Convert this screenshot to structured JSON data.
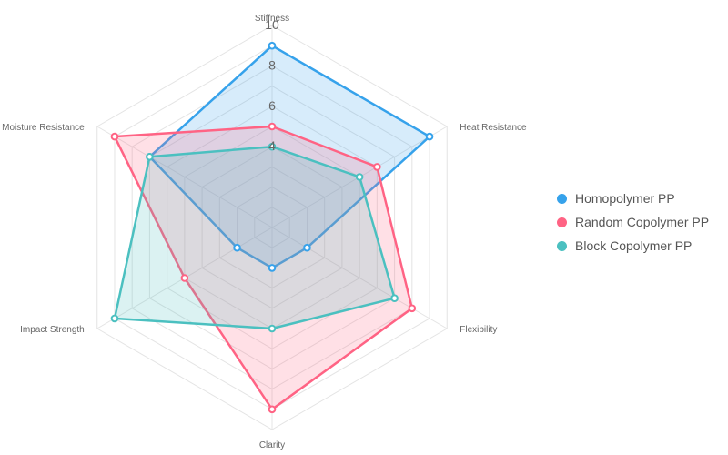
{
  "chart_data": {
    "type": "radar",
    "axes": [
      "Stiffness",
      "Heat Resistance",
      "Flexibility",
      "Clarity",
      "Impact Strength",
      "Moisture Resistance"
    ],
    "r_min": 0,
    "r_max": 10,
    "tick_labels": [
      "4",
      "6",
      "8",
      "10"
    ],
    "grid": true,
    "legend_position": "right",
    "series": [
      {
        "name": "Homopolymer PP",
        "color": "#36a2eb",
        "values": [
          9,
          9,
          2,
          2,
          2,
          7
        ]
      },
      {
        "name": "Random Copolymer PP",
        "color": "#ff6384",
        "values": [
          5,
          6,
          8,
          9,
          5,
          9
        ]
      },
      {
        "name": "Block Copolymer PP",
        "color": "#4bc0c0",
        "values": [
          4,
          5,
          7,
          5,
          9,
          7
        ]
      }
    ]
  }
}
